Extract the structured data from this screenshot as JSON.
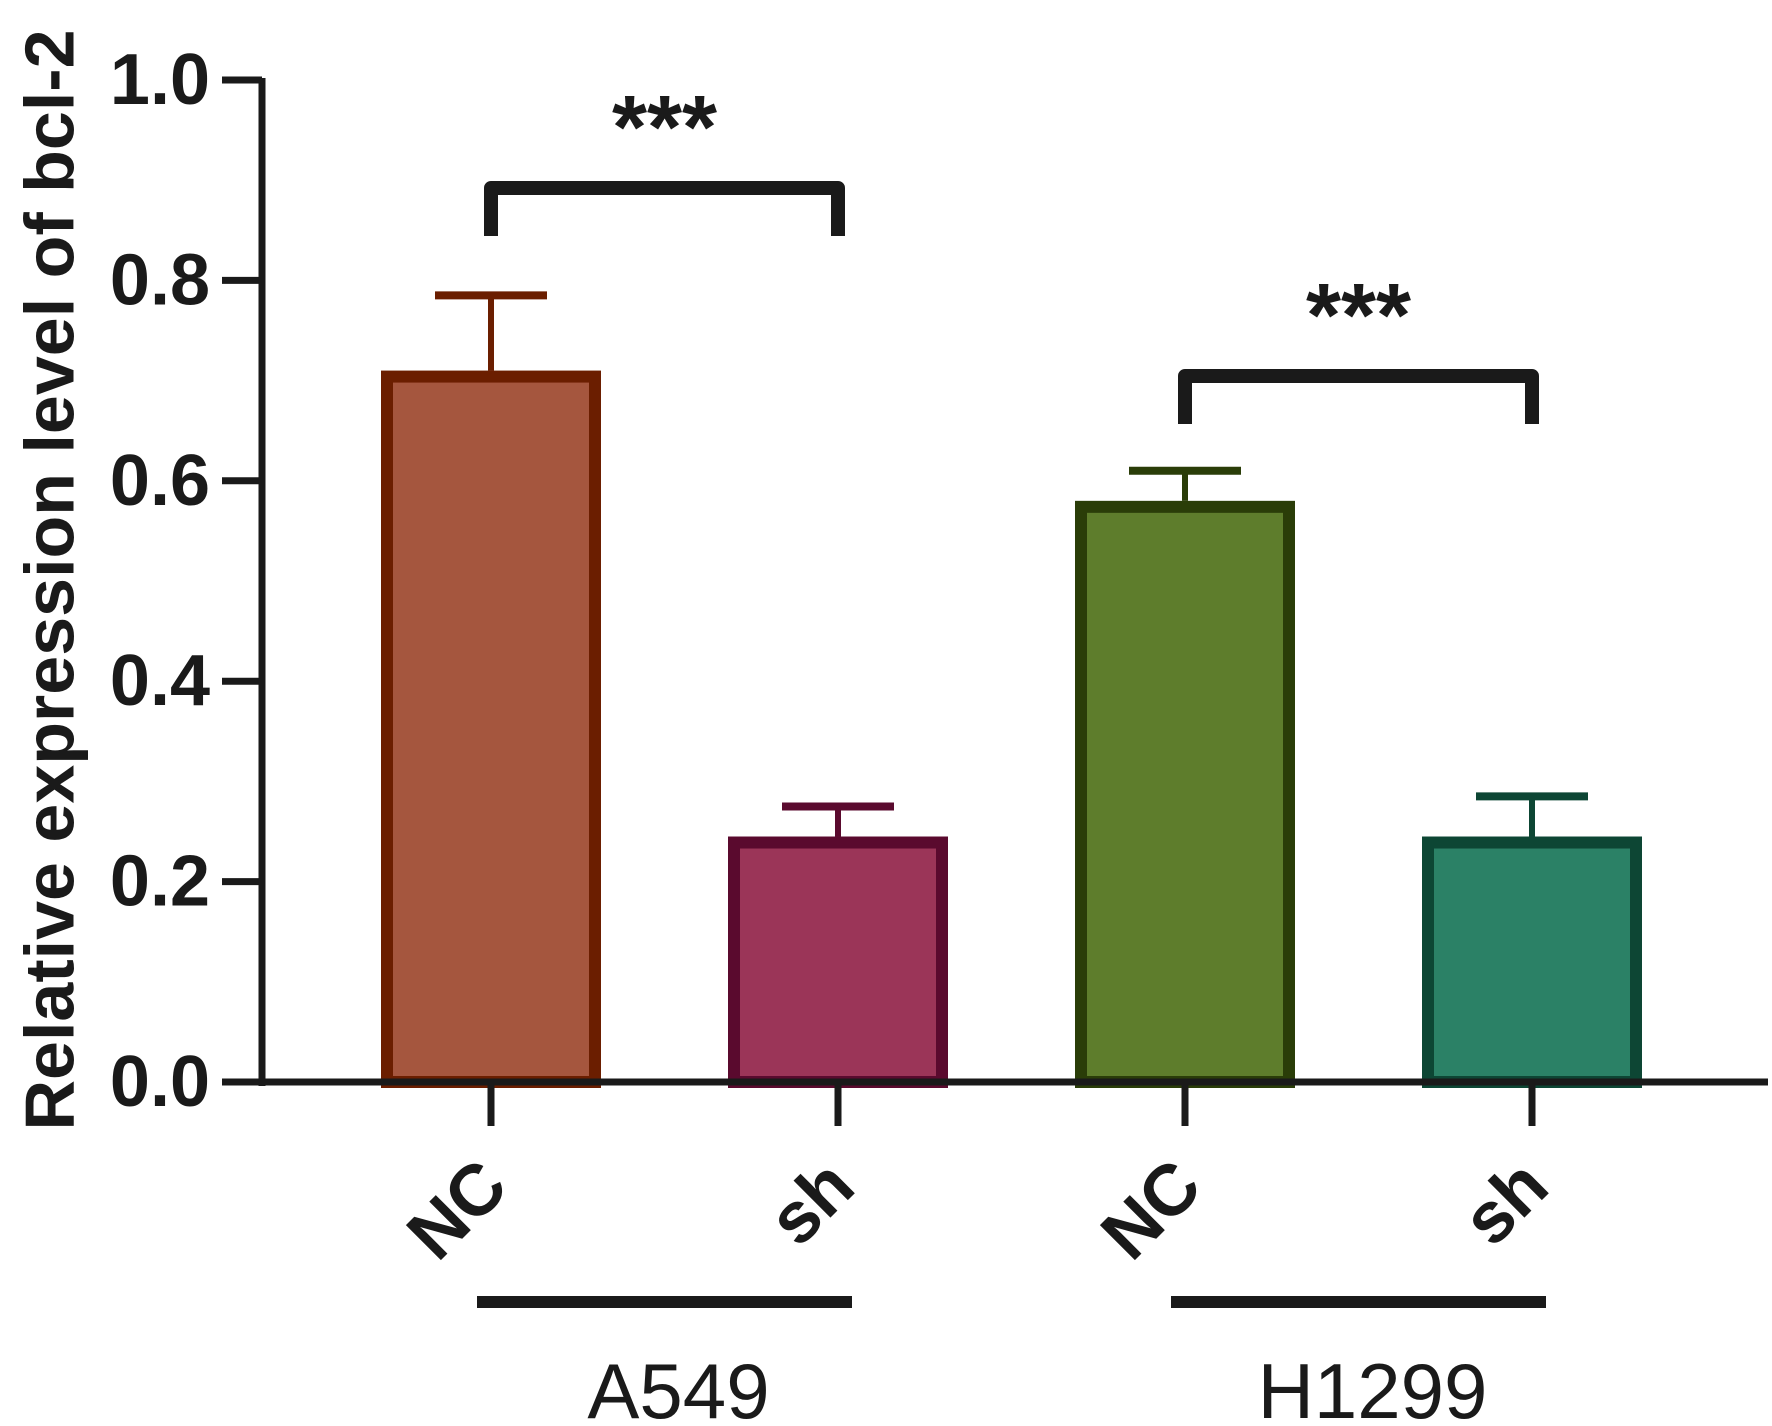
{
  "chart_data": {
    "type": "bar",
    "title": "",
    "xlabel": "",
    "ylabel": "Relative expression level of bcl-2",
    "ylim": [
      0,
      1.0
    ],
    "yticks": [
      "0.0",
      "0.2",
      "0.4",
      "0.6",
      "0.8",
      "1.0"
    ],
    "categories": [
      "NC",
      "sh",
      "NC",
      "sh"
    ],
    "groups": [
      {
        "label": "A549",
        "categories": [
          0,
          1
        ]
      },
      {
        "label": "H1299",
        "categories": [
          2,
          3
        ]
      }
    ],
    "values": [
      0.71,
      0.245,
      0.58,
      0.245
    ],
    "errors": [
      0.075,
      0.03,
      0.03,
      0.04
    ],
    "colors": {
      "fill": [
        "#a5563e",
        "#9b3558",
        "#5e7d2c",
        "#2b8166"
      ],
      "stroke": [
        "#6b1e00",
        "#5a0a2e",
        "#2a3d08",
        "#0d4634"
      ]
    },
    "significance": [
      {
        "label": "***",
        "from": 0,
        "to": 1
      },
      {
        "label": "***",
        "from": 2,
        "to": 3
      }
    ]
  }
}
